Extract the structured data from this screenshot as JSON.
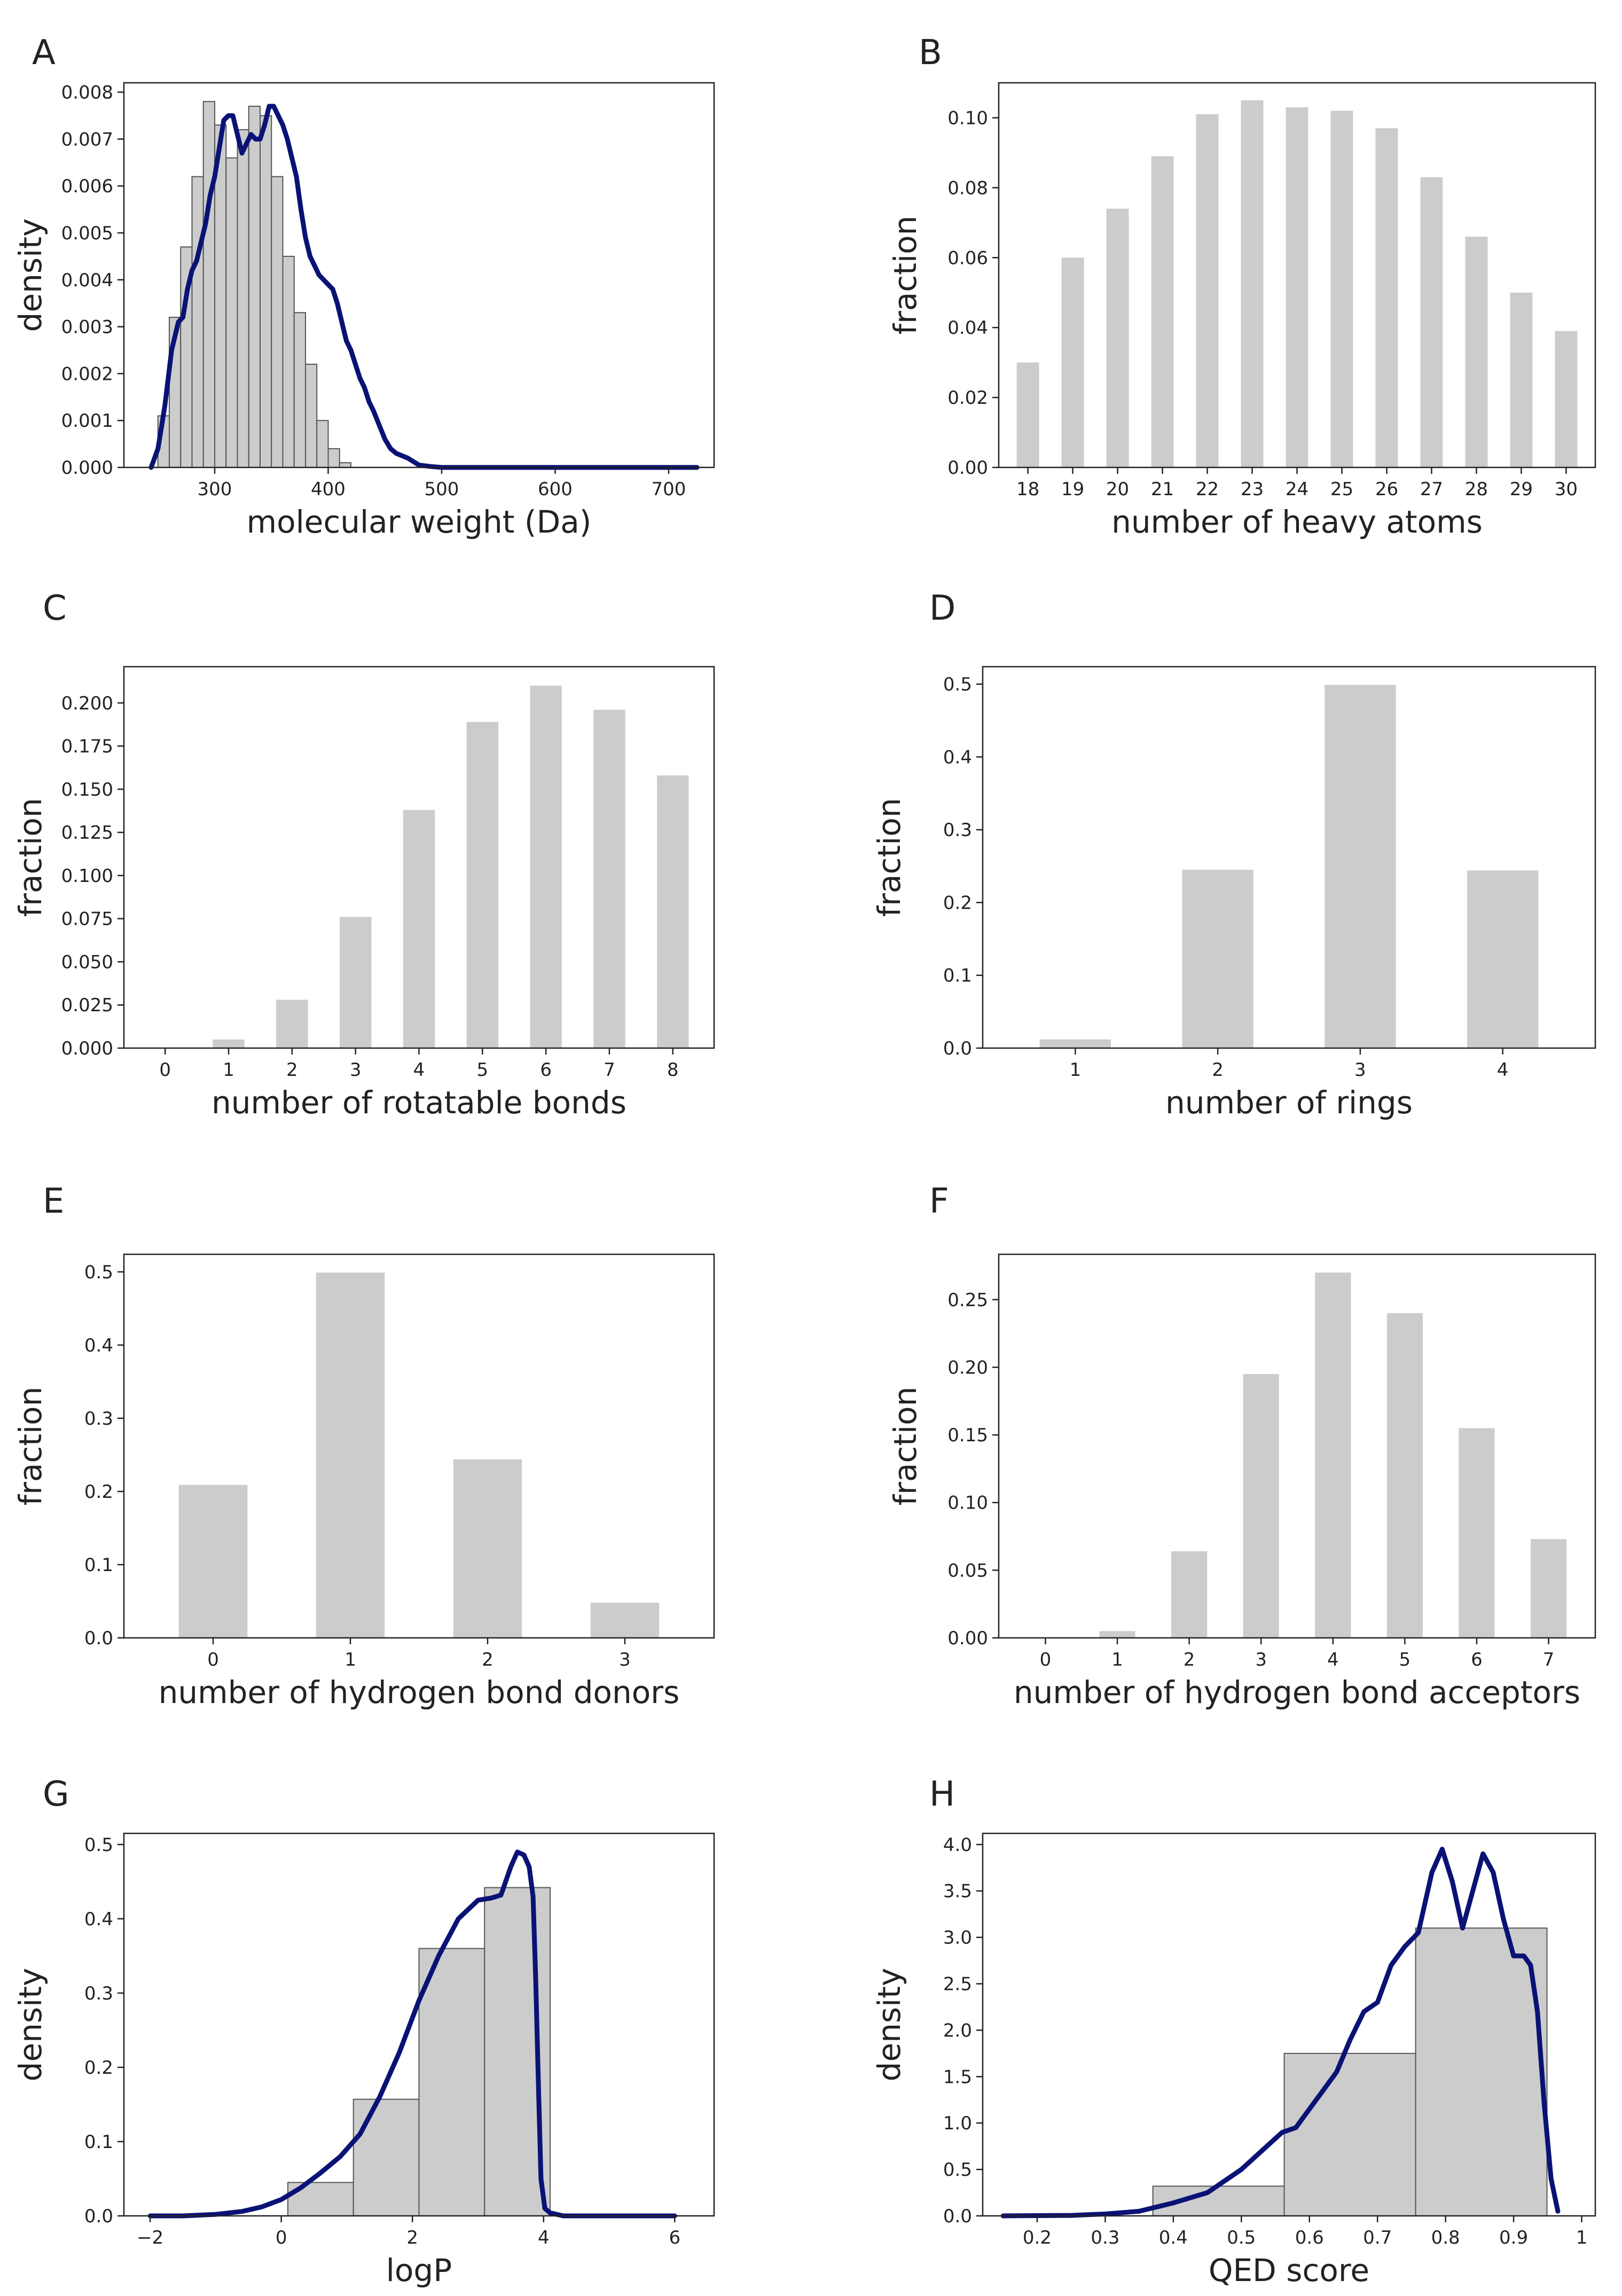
{
  "colors": {
    "bar_fill": "#cccccc",
    "bar_edge": "#555555",
    "density_line": "#0a1275",
    "axis": "#222222",
    "background": "#ffffff"
  },
  "chart_data": [
    {
      "id": "A",
      "panel_label": "A",
      "type": "histogram",
      "xlabel": "molecular weight (Da)",
      "ylabel": "density",
      "xlim": [
        220,
        740
      ],
      "ylim": [
        0,
        0.0082
      ],
      "xticks": [
        300,
        400,
        500,
        600,
        700
      ],
      "yticks": [
        0.0,
        0.001,
        0.002,
        0.003,
        0.004,
        0.005,
        0.006,
        0.007,
        0.008
      ],
      "ytick_decimals": 3,
      "bins": {
        "start": 250,
        "width": 10,
        "values": [
          0.0011,
          0.0032,
          0.0047,
          0.0062,
          0.0078,
          0.0073,
          0.0066,
          0.0072,
          0.0077,
          0.0075,
          0.0062,
          0.0045,
          0.0033,
          0.0022,
          0.001,
          0.0004,
          0.0001
        ]
      },
      "density": {
        "x": [
          244,
          250,
          256,
          262,
          268,
          272,
          276,
          280,
          284,
          288,
          292,
          296,
          300,
          304,
          308,
          312,
          316,
          320,
          324,
          328,
          332,
          336,
          340,
          344,
          348,
          352,
          356,
          360,
          364,
          368,
          372,
          376,
          380,
          384,
          388,
          392,
          396,
          400,
          404,
          408,
          412,
          416,
          420,
          424,
          428,
          432,
          436,
          440,
          445,
          450,
          455,
          460,
          470,
          480,
          490,
          500,
          520,
          560,
          600,
          650,
          700,
          725
        ],
        "y": [
          0.0,
          0.0004,
          0.0013,
          0.0025,
          0.0031,
          0.0032,
          0.0038,
          0.0042,
          0.0044,
          0.0048,
          0.0052,
          0.0058,
          0.0062,
          0.0068,
          0.0074,
          0.0075,
          0.0075,
          0.0071,
          0.0067,
          0.0069,
          0.0071,
          0.007,
          0.007,
          0.0073,
          0.0077,
          0.0077,
          0.0075,
          0.0073,
          0.007,
          0.0066,
          0.0062,
          0.0055,
          0.0049,
          0.0045,
          0.0043,
          0.0041,
          0.004,
          0.0039,
          0.0038,
          0.0035,
          0.0031,
          0.0027,
          0.0025,
          0.0022,
          0.0019,
          0.0017,
          0.0014,
          0.0012,
          0.0009,
          0.0006,
          0.0004,
          0.0003,
          0.0002,
          5e-05,
          2e-05,
          0.0,
          0.0,
          0.0,
          0.0,
          0.0,
          0.0,
          0.0
        ]
      }
    },
    {
      "id": "B",
      "panel_label": "B",
      "type": "bar",
      "xlabel": "number of heavy atoms",
      "ylabel": "fraction",
      "categories": [
        "18",
        "19",
        "20",
        "21",
        "22",
        "23",
        "24",
        "25",
        "26",
        "27",
        "28",
        "29",
        "30"
      ],
      "values": [
        0.03,
        0.06,
        0.074,
        0.089,
        0.101,
        0.105,
        0.103,
        0.102,
        0.097,
        0.083,
        0.066,
        0.05,
        0.039
      ],
      "ylim": [
        0,
        0.11
      ],
      "yticks": [
        0.0,
        0.02,
        0.04,
        0.06,
        0.08,
        0.1
      ],
      "ytick_decimals": 2
    },
    {
      "id": "C",
      "panel_label": "C",
      "type": "bar",
      "xlabel": "number of rotatable bonds",
      "ylabel": "fraction",
      "categories": [
        "0",
        "1",
        "2",
        "3",
        "4",
        "5",
        "6",
        "7",
        "8"
      ],
      "values": [
        0.0,
        0.005,
        0.028,
        0.076,
        0.138,
        0.189,
        0.21,
        0.196,
        0.158
      ],
      "ylim": [
        0,
        0.221
      ],
      "yticks": [
        0.0,
        0.025,
        0.05,
        0.075,
        0.1,
        0.125,
        0.15,
        0.175,
        0.2
      ],
      "ytick_decimals": 3
    },
    {
      "id": "D",
      "panel_label": "D",
      "type": "bar",
      "xlabel": "number of rings",
      "ylabel": "fraction",
      "categories": [
        "1",
        "2",
        "3",
        "4"
      ],
      "values": [
        0.012,
        0.245,
        0.499,
        0.244
      ],
      "ylim": [
        0,
        0.524
      ],
      "yticks": [
        0.0,
        0.1,
        0.2,
        0.3,
        0.4,
        0.5
      ],
      "ytick_decimals": 1
    },
    {
      "id": "E",
      "panel_label": "E",
      "type": "bar",
      "xlabel": "number of hydrogen bond donors",
      "ylabel": "fraction",
      "categories": [
        "0",
        "1",
        "2",
        "3"
      ],
      "values": [
        0.209,
        0.499,
        0.244,
        0.048
      ],
      "ylim": [
        0,
        0.524
      ],
      "yticks": [
        0.0,
        0.1,
        0.2,
        0.3,
        0.4,
        0.5
      ],
      "ytick_decimals": 1
    },
    {
      "id": "F",
      "panel_label": "F",
      "type": "bar",
      "xlabel": "number of hydrogen bond acceptors",
      "ylabel": "fraction",
      "categories": [
        "0",
        "1",
        "2",
        "3",
        "4",
        "5",
        "6",
        "7"
      ],
      "values": [
        0.0,
        0.005,
        0.064,
        0.195,
        0.27,
        0.24,
        0.155,
        0.073
      ],
      "ylim": [
        0,
        0.2835
      ],
      "yticks": [
        0.0,
        0.05,
        0.1,
        0.15,
        0.2,
        0.25
      ],
      "ytick_decimals": 2
    },
    {
      "id": "G",
      "panel_label": "G",
      "type": "histogram",
      "xlabel": "logP",
      "ylabel": "density",
      "xlim": [
        -2.4,
        6.6
      ],
      "ylim": [
        0,
        0.515
      ],
      "xticks": [
        -2,
        0,
        2,
        4,
        6
      ],
      "yticks": [
        0.0,
        0.1,
        0.2,
        0.3,
        0.4,
        0.5
      ],
      "ytick_decimals": 1,
      "bins": {
        "start": 0.1,
        "width": 1.0,
        "values": [
          0.045,
          0.157,
          0.36,
          0.442
        ]
      },
      "density": {
        "x": [
          -2.0,
          -1.5,
          -1.0,
          -0.6,
          -0.3,
          0.0,
          0.3,
          0.6,
          0.9,
          1.2,
          1.5,
          1.8,
          2.1,
          2.4,
          2.7,
          3.0,
          3.2,
          3.35,
          3.5,
          3.6,
          3.7,
          3.78,
          3.84,
          3.88,
          3.92,
          3.96,
          4.02,
          4.1,
          4.3,
          4.6,
          5.0,
          6.0
        ],
        "y": [
          0.0,
          0.0,
          0.002,
          0.006,
          0.012,
          0.022,
          0.038,
          0.058,
          0.08,
          0.11,
          0.16,
          0.22,
          0.29,
          0.35,
          0.4,
          0.425,
          0.428,
          0.432,
          0.47,
          0.49,
          0.486,
          0.47,
          0.43,
          0.32,
          0.18,
          0.05,
          0.01,
          0.004,
          0.0,
          0.0,
          0.0,
          0.0
        ]
      }
    },
    {
      "id": "H",
      "panel_label": "H",
      "type": "histogram",
      "xlabel": "QED score",
      "ylabel": "density",
      "xlim": [
        0.12,
        1.02
      ],
      "ylim": [
        0,
        4.12
      ],
      "xticks": [
        0.2,
        0.3,
        0.4,
        0.5,
        0.6,
        0.7,
        0.8,
        0.9,
        1.0
      ],
      "yticks": [
        0.0,
        0.5,
        1.0,
        1.5,
        2.0,
        2.5,
        3.0,
        3.5,
        4.0
      ],
      "ytick_decimals": 1,
      "bins": {
        "start": 0.37,
        "width": 0.193,
        "values": [
          0.32,
          1.75,
          3.1
        ]
      },
      "density": {
        "x": [
          0.15,
          0.25,
          0.3,
          0.35,
          0.4,
          0.45,
          0.5,
          0.53,
          0.56,
          0.58,
          0.6,
          0.62,
          0.64,
          0.66,
          0.68,
          0.7,
          0.72,
          0.74,
          0.76,
          0.78,
          0.795,
          0.81,
          0.825,
          0.84,
          0.855,
          0.87,
          0.885,
          0.9,
          0.915,
          0.925,
          0.935,
          0.945,
          0.955,
          0.965
        ],
        "y": [
          0.0,
          0.005,
          0.02,
          0.05,
          0.14,
          0.25,
          0.5,
          0.7,
          0.9,
          0.95,
          1.15,
          1.35,
          1.55,
          1.9,
          2.2,
          2.3,
          2.7,
          2.9,
          3.05,
          3.7,
          3.95,
          3.6,
          3.1,
          3.5,
          3.9,
          3.7,
          3.2,
          2.8,
          2.8,
          2.7,
          2.2,
          1.2,
          0.4,
          0.05
        ]
      }
    }
  ]
}
